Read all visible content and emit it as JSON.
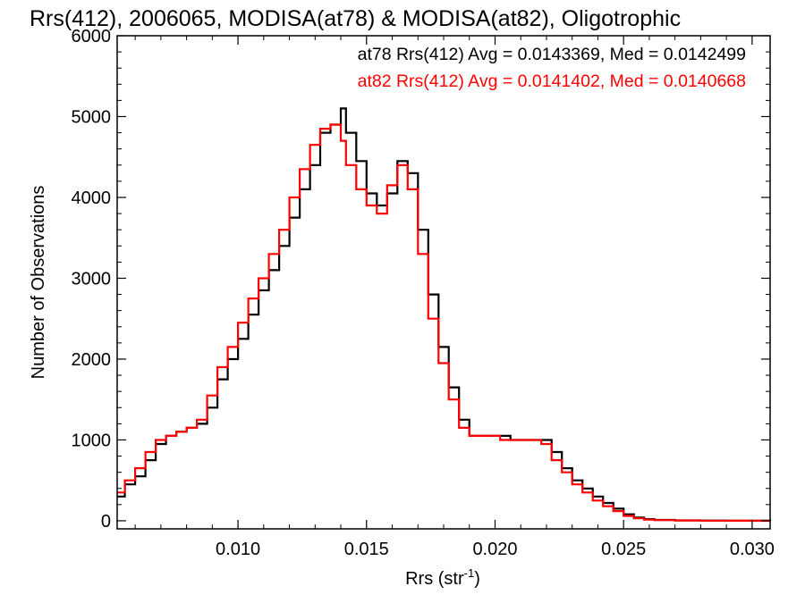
{
  "chart_data": {
    "type": "line",
    "step": true,
    "title": "Rrs(412), 2006065, MODISA(at78) & MODISA(at82), Oligotrophic",
    "xlabel": "Rrs (str",
    "xlabel_sup": "-1",
    "xlabel_close": ")",
    "ylabel": "Number of Observations",
    "xlim": [
      0.0053,
      0.0307
    ],
    "ylim": [
      -100,
      6000
    ],
    "xticks": [
      0.01,
      0.015,
      0.02,
      0.025,
      0.03
    ],
    "xtick_labels": [
      "0.010",
      "0.015",
      "0.020",
      "0.025",
      "0.030"
    ],
    "yticks": [
      0,
      1000,
      2000,
      3000,
      4000,
      5000,
      6000
    ],
    "ytick_labels": [
      "0",
      "1000",
      "2000",
      "3000",
      "4000",
      "5000",
      "6000"
    ],
    "grid": false,
    "annotations": [
      {
        "text": "at78 Rrs(412) Avg = 0.0143369, Med = 0.0142499",
        "color": "#000000"
      },
      {
        "text": "at82 Rrs(412) Avg = 0.0141402, Med = 0.0140668",
        "color": "#ff0000"
      }
    ],
    "series": [
      {
        "name": "at78",
        "color": "#000000",
        "x": [
          0.0053,
          0.0056,
          0.006,
          0.0064,
          0.0068,
          0.0072,
          0.0076,
          0.008,
          0.0084,
          0.0088,
          0.0092,
          0.0096,
          0.01,
          0.0104,
          0.0108,
          0.0112,
          0.0116,
          0.012,
          0.0124,
          0.0128,
          0.0132,
          0.0136,
          0.014,
          0.0142,
          0.0146,
          0.015,
          0.0154,
          0.0158,
          0.0162,
          0.0166,
          0.017,
          0.0174,
          0.0178,
          0.0182,
          0.0186,
          0.019,
          0.0194,
          0.0198,
          0.0202,
          0.0206,
          0.021,
          0.0214,
          0.0218,
          0.0222,
          0.0226,
          0.023,
          0.0234,
          0.0238,
          0.0242,
          0.0246,
          0.025,
          0.0254,
          0.0258,
          0.0262,
          0.027,
          0.028,
          0.029,
          0.03,
          0.0307
        ],
        "y": [
          300,
          450,
          550,
          750,
          950,
          1050,
          1100,
          1150,
          1200,
          1400,
          1750,
          2000,
          2250,
          2550,
          2850,
          3100,
          3400,
          3750,
          4100,
          4400,
          4800,
          4900,
          5100,
          4800,
          4450,
          4050,
          3900,
          4050,
          4450,
          4300,
          3600,
          2800,
          2150,
          1650,
          1250,
          1050,
          1050,
          1050,
          1050,
          1000,
          1000,
          1000,
          1000,
          850,
          650,
          500,
          400,
          300,
          220,
          150,
          80,
          40,
          20,
          10,
          5,
          3,
          2,
          1,
          0
        ]
      },
      {
        "name": "at82",
        "color": "#ff0000",
        "x": [
          0.0053,
          0.0056,
          0.006,
          0.0064,
          0.0068,
          0.0072,
          0.0076,
          0.008,
          0.0084,
          0.0088,
          0.0092,
          0.0096,
          0.01,
          0.0104,
          0.0108,
          0.0112,
          0.0116,
          0.012,
          0.0124,
          0.0128,
          0.0132,
          0.0136,
          0.014,
          0.0142,
          0.0146,
          0.015,
          0.0154,
          0.0158,
          0.0162,
          0.0166,
          0.017,
          0.0174,
          0.0178,
          0.0182,
          0.0186,
          0.019,
          0.0194,
          0.0198,
          0.0202,
          0.0206,
          0.021,
          0.0214,
          0.0218,
          0.0222,
          0.0226,
          0.023,
          0.0234,
          0.0238,
          0.0242,
          0.0246,
          0.025,
          0.0254,
          0.0258,
          0.0262,
          0.027,
          0.028,
          0.029,
          0.03,
          0.0307
        ],
        "y": [
          350,
          500,
          650,
          850,
          1000,
          1050,
          1100,
          1150,
          1250,
          1550,
          1900,
          2150,
          2450,
          2750,
          3000,
          3300,
          3600,
          4000,
          4350,
          4650,
          4850,
          4900,
          4700,
          4400,
          4100,
          3900,
          3800,
          4150,
          4400,
          4100,
          3300,
          2500,
          1950,
          1500,
          1150,
          1050,
          1050,
          1050,
          1000,
          1000,
          1000,
          1000,
          950,
          750,
          600,
          450,
          350,
          250,
          180,
          120,
          60,
          30,
          15,
          8,
          4,
          2,
          1,
          0,
          0
        ]
      }
    ]
  }
}
